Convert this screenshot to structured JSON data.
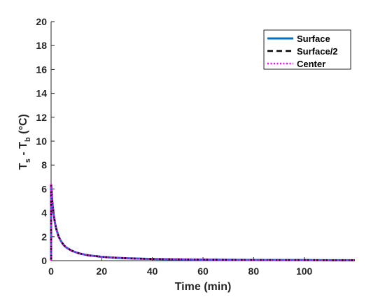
{
  "chart_data": {
    "type": "line",
    "xlabel": "Time (min)",
    "ylabel": {
      "base": "T",
      "sub1": "s",
      "mid": " - T",
      "sub2": "b",
      "unit": " (°C)"
    },
    "xlim": [
      0,
      120
    ],
    "ylim": [
      0,
      20
    ],
    "xticks": [
      0,
      20,
      40,
      60,
      80,
      100
    ],
    "yticks": [
      0,
      2,
      4,
      6,
      8,
      10,
      12,
      14,
      16,
      18,
      20
    ],
    "grid": false,
    "legend_position": "top-right",
    "series": [
      {
        "name": "Surface",
        "color": "#0072BD",
        "style": "solid",
        "x": [
          0,
          0.2,
          0.5,
          1,
          1.5,
          2,
          3,
          4,
          5,
          6,
          8,
          10,
          12,
          15,
          20,
          25,
          30,
          40,
          50,
          60,
          70,
          80,
          90,
          100,
          110,
          120
        ],
        "y": [
          6.4,
          5.8,
          4.9,
          3.9,
          3.2,
          2.7,
          2.0,
          1.6,
          1.3,
          1.1,
          0.85,
          0.68,
          0.56,
          0.44,
          0.32,
          0.25,
          0.2,
          0.14,
          0.11,
          0.09,
          0.07,
          0.06,
          0.05,
          0.05,
          0.04,
          0.04
        ]
      },
      {
        "name": "Surface/2",
        "color": "#000000",
        "style": "dashed",
        "x": [
          0,
          0.2,
          0.5,
          1,
          1.5,
          2,
          3,
          4,
          5,
          6,
          8,
          10,
          12,
          15,
          20,
          25,
          30,
          40,
          50,
          60,
          70,
          80,
          90,
          100,
          110,
          120
        ],
        "y": [
          6.4,
          5.8,
          4.9,
          3.9,
          3.2,
          2.7,
          2.0,
          1.6,
          1.3,
          1.1,
          0.85,
          0.68,
          0.56,
          0.44,
          0.32,
          0.25,
          0.2,
          0.14,
          0.11,
          0.09,
          0.07,
          0.06,
          0.05,
          0.05,
          0.04,
          0.04
        ]
      },
      {
        "name": "Center",
        "color": "#FF00FF",
        "style": "dotted",
        "x": [
          0,
          0.2,
          0.5,
          1,
          1.5,
          2,
          3,
          4,
          5,
          6,
          8,
          10,
          12,
          15,
          20,
          25,
          30,
          40,
          50,
          60,
          70,
          80,
          90,
          100,
          110,
          120
        ],
        "y": [
          6.4,
          5.8,
          4.9,
          3.9,
          3.2,
          2.7,
          2.0,
          1.6,
          1.3,
          1.1,
          0.85,
          0.68,
          0.56,
          0.44,
          0.32,
          0.25,
          0.2,
          0.14,
          0.11,
          0.09,
          0.07,
          0.06,
          0.05,
          0.05,
          0.04,
          0.04
        ]
      }
    ]
  }
}
